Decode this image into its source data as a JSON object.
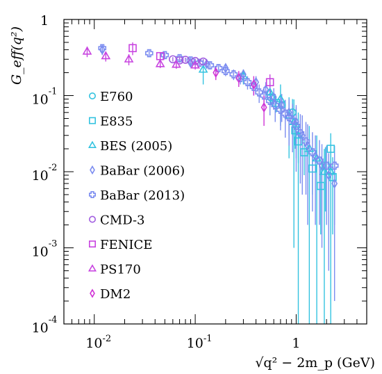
{
  "chart_data": {
    "type": "scatter",
    "title": "",
    "xlabel": "√q² − 2m_p (GeV)",
    "ylabel": "G_eff(q²)",
    "xscale": "log",
    "yscale": "log",
    "xlim": [
      0.005,
      5
    ],
    "ylim": [
      0.0001,
      1
    ],
    "grid": false,
    "legend_position": "left-middle",
    "x_tick_labels": [
      {
        "value": 0.01,
        "base": "10",
        "exp": "-2"
      },
      {
        "value": 0.1,
        "base": "10",
        "exp": "-1"
      },
      {
        "value": 1,
        "base": "1",
        "exp": ""
      }
    ],
    "y_tick_labels": [
      {
        "value": 1,
        "base": "1",
        "exp": ""
      },
      {
        "value": 0.1,
        "base": "10",
        "exp": "-1"
      },
      {
        "value": 0.01,
        "base": "10",
        "exp": "-2"
      },
      {
        "value": 0.001,
        "base": "10",
        "exp": "-3"
      },
      {
        "value": 0.0001,
        "base": "10",
        "exp": "-4"
      }
    ],
    "series": [
      {
        "name": "E760",
        "marker": "circle",
        "color": "#33c3e0",
        "points": [
          [
            0.56,
            0.095,
            0.02
          ],
          [
            0.72,
            0.075,
            0.02
          ],
          [
            0.92,
            0.06,
            0.03
          ]
        ]
      },
      {
        "name": "E835",
        "marker": "square",
        "color": "#33c3e0",
        "points": [
          [
            0.63,
            0.08,
            0.02
          ],
          [
            0.98,
            0.035,
            0.015
          ],
          [
            1.05,
            0.025,
            0.012
          ],
          [
            1.2,
            0.018,
            0.009
          ],
          [
            1.45,
            0.011,
            0.006
          ],
          [
            1.75,
            0.0065,
            0.005
          ],
          [
            1.95,
            0.012,
            0.009
          ],
          [
            2.2,
            0.02,
            0.012
          ],
          [
            2.3,
            0.0085,
            0.007
          ]
        ]
      },
      {
        "name": "BES (2005)",
        "marker": "triangle",
        "color": "#33c3e0",
        "points": [
          [
            0.12,
            0.22,
            0.08
          ],
          [
            0.3,
            0.18,
            0.04
          ],
          [
            0.55,
            0.11,
            0.04
          ],
          [
            0.7,
            0.09,
            0.05
          ],
          [
            0.85,
            0.055,
            0.04
          ],
          [
            0.95,
            0.045,
            0.044
          ],
          [
            1.05,
            0.03,
            0.0299
          ],
          [
            1.35,
            0.02,
            0.0199
          ],
          [
            1.6,
            0.015,
            0.0149
          ],
          [
            1.9,
            0.01,
            0.0099
          ],
          [
            2.2,
            0.01,
            0.0099
          ]
        ]
      },
      {
        "name": "BaBar (2006)",
        "marker": "diamond",
        "color": "#7b8cf0",
        "points": [
          [
            0.012,
            0.4,
            0.06
          ],
          [
            0.09,
            0.27,
            0.03
          ],
          [
            0.13,
            0.26,
            0.03
          ],
          [
            0.2,
            0.23,
            0.03
          ],
          [
            0.3,
            0.19,
            0.03
          ],
          [
            0.4,
            0.15,
            0.03
          ],
          [
            0.5,
            0.12,
            0.03
          ],
          [
            0.6,
            0.095,
            0.03
          ],
          [
            0.72,
            0.075,
            0.03
          ],
          [
            0.85,
            0.06,
            0.03
          ],
          [
            1.0,
            0.045,
            0.03
          ],
          [
            1.15,
            0.03,
            0.025
          ],
          [
            1.3,
            0.022,
            0.02
          ],
          [
            1.55,
            0.016,
            0.014
          ],
          [
            1.8,
            0.012,
            0.011
          ],
          [
            2.1,
            0.009,
            0.0085
          ],
          [
            2.4,
            0.007,
            0.0068
          ]
        ]
      },
      {
        "name": "BaBar (2013)",
        "marker": "cross",
        "color": "#7b8cf0",
        "points": [
          [
            0.012,
            0.42,
            0.05
          ],
          [
            0.035,
            0.36,
            0.04
          ],
          [
            0.05,
            0.34,
            0.03
          ],
          [
            0.07,
            0.31,
            0.03
          ],
          [
            0.09,
            0.29,
            0.03
          ],
          [
            0.11,
            0.27,
            0.03
          ],
          [
            0.14,
            0.25,
            0.03
          ],
          [
            0.17,
            0.23,
            0.03
          ],
          [
            0.2,
            0.21,
            0.03
          ],
          [
            0.24,
            0.19,
            0.03
          ],
          [
            0.28,
            0.17,
            0.03
          ],
          [
            0.33,
            0.15,
            0.03
          ],
          [
            0.38,
            0.13,
            0.03
          ],
          [
            0.43,
            0.11,
            0.03
          ],
          [
            0.48,
            0.1,
            0.03
          ],
          [
            0.55,
            0.085,
            0.03
          ],
          [
            0.62,
            0.075,
            0.03
          ],
          [
            0.7,
            0.065,
            0.03
          ],
          [
            0.78,
            0.058,
            0.03
          ],
          [
            0.85,
            0.052,
            0.03
          ],
          [
            0.92,
            0.048,
            0.03
          ],
          [
            1.0,
            0.04,
            0.03
          ],
          [
            1.1,
            0.032,
            0.025
          ],
          [
            1.25,
            0.025,
            0.02
          ],
          [
            1.45,
            0.018,
            0.015
          ],
          [
            1.7,
            0.014,
            0.012
          ],
          [
            2.0,
            0.012,
            0.01
          ],
          [
            2.4,
            0.012,
            0.01
          ]
        ]
      },
      {
        "name": "CMD-3",
        "marker": "circle",
        "color": "#a15de0",
        "points": [
          [
            0.06,
            0.3,
            0.02
          ],
          [
            0.07,
            0.29,
            0.02
          ],
          [
            0.08,
            0.295,
            0.02
          ],
          [
            0.1,
            0.285,
            0.02
          ],
          [
            0.12,
            0.28,
            0.02
          ]
        ]
      },
      {
        "name": "FENICE",
        "marker": "square",
        "color": "#c844e0",
        "points": [
          [
            0.024,
            0.42,
            0.08
          ],
          [
            0.045,
            0.33,
            0.04
          ],
          [
            0.55,
            0.15,
            0.04
          ]
        ]
      },
      {
        "name": "PS170",
        "marker": "triangle",
        "color": "#c844e0",
        "points": [
          [
            0.0085,
            0.38,
            0.06
          ],
          [
            0.013,
            0.33,
            0.05
          ],
          [
            0.022,
            0.3,
            0.05
          ],
          [
            0.045,
            0.26,
            0.03
          ],
          [
            0.065,
            0.255,
            0.03
          ],
          [
            0.1,
            0.25,
            0.03
          ]
        ]
      },
      {
        "name": "DM2",
        "marker": "diamond",
        "color": "#d033d6",
        "points": [
          [
            0.16,
            0.2,
            0.04
          ],
          [
            0.27,
            0.17,
            0.04
          ],
          [
            0.38,
            0.14,
            0.04
          ],
          [
            0.48,
            0.07,
            0.03
          ]
        ]
      }
    ]
  }
}
